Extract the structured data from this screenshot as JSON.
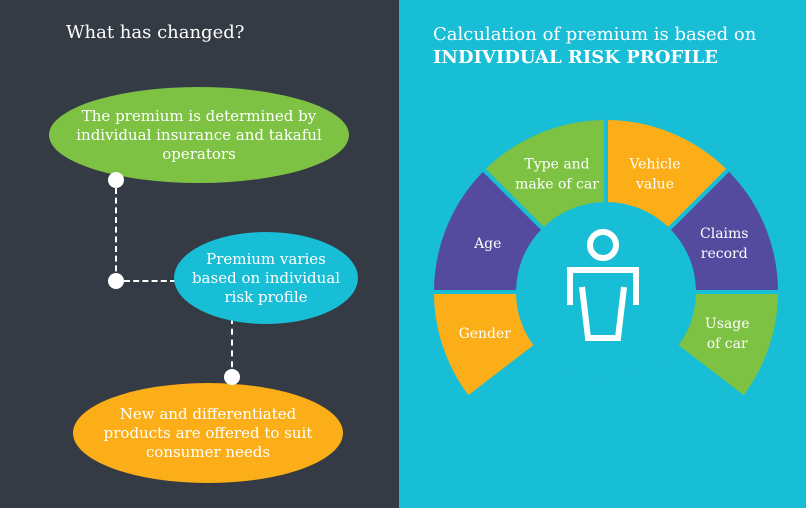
{
  "left": {
    "title": "What has changed?",
    "steps": [
      {
        "text": "The premium is determined by individual insurance and takaful operators",
        "color": "#7dc242"
      },
      {
        "text": "Premium varies based on individual risk profile",
        "color": "#18bdd6"
      },
      {
        "text": "New and differentiated products are offered to suit consumer needs",
        "color": "#fbae17"
      }
    ]
  },
  "right": {
    "title_line1": "Calculation of premium is based on",
    "title_line2": "INDIVIDUAL RISK PROFILE",
    "center_icon": "person-icon",
    "factors": [
      {
        "label": [
          "Gender"
        ],
        "color": "#fbae17"
      },
      {
        "label": [
          "Age"
        ],
        "color": "#544b9f"
      },
      {
        "label": [
          "Type and",
          "make of car"
        ],
        "color": "#7dc242"
      },
      {
        "label": [
          "Vehicle",
          "value"
        ],
        "color": "#fbae17"
      },
      {
        "label": [
          "Claims",
          "record"
        ],
        "color": "#544b9f"
      },
      {
        "label": [
          "Usage",
          "of car"
        ],
        "color": "#7dc242"
      }
    ]
  },
  "colors": {
    "dark": "#343b45",
    "teal": "#18bdd6"
  }
}
